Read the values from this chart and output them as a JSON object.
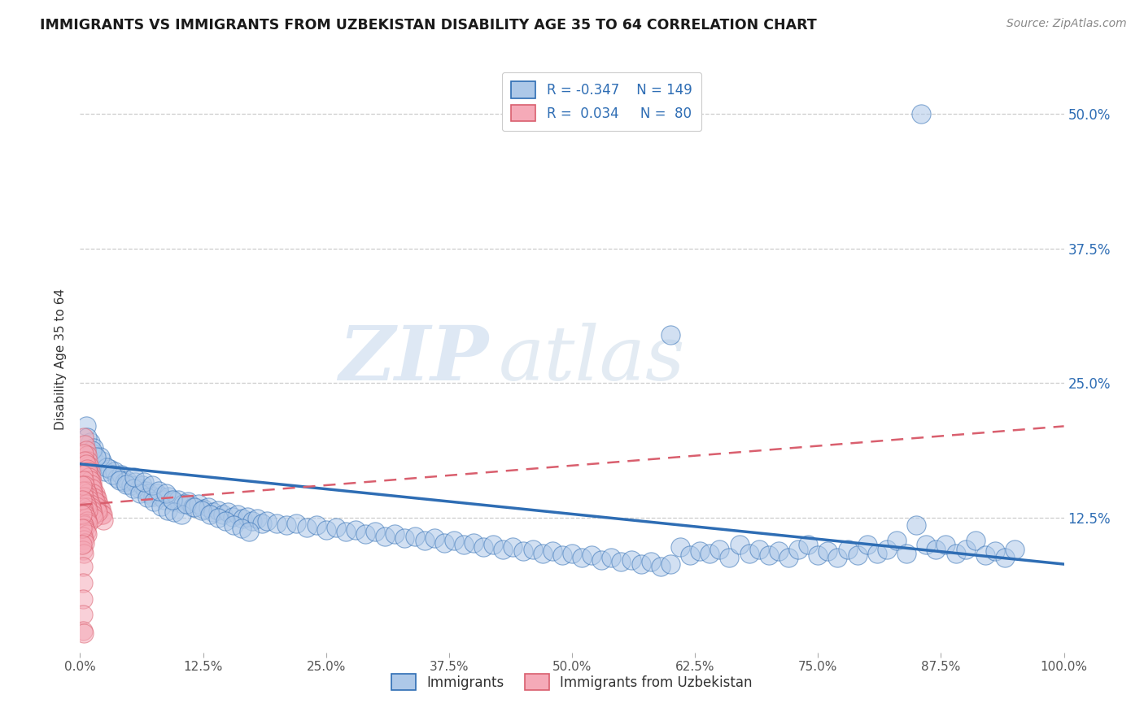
{
  "title": "IMMIGRANTS VS IMMIGRANTS FROM UZBEKISTAN DISABILITY AGE 35 TO 64 CORRELATION CHART",
  "source": "Source: ZipAtlas.com",
  "ylabel": "Disability Age 35 to 64",
  "xlim": [
    0.0,
    1.0
  ],
  "ylim": [
    0.0,
    0.545
  ],
  "x_tick_labels": [
    "0.0%",
    "12.5%",
    "25.0%",
    "37.5%",
    "50.0%",
    "62.5%",
    "75.0%",
    "87.5%",
    "100.0%"
  ],
  "x_tick_values": [
    0.0,
    0.125,
    0.25,
    0.375,
    0.5,
    0.625,
    0.75,
    0.875,
    1.0
  ],
  "y_tick_labels": [
    "12.5%",
    "25.0%",
    "37.5%",
    "50.0%"
  ],
  "y_tick_values": [
    0.125,
    0.25,
    0.375,
    0.5
  ],
  "legend_blue_r": "-0.347",
  "legend_blue_n": "149",
  "legend_pink_r": "0.034",
  "legend_pink_n": "80",
  "blue_color": "#adc8e8",
  "pink_color": "#f5aab8",
  "blue_line_color": "#2e6db4",
  "pink_line_color": "#d95f6e",
  "watermark_zip": "ZIP",
  "watermark_atlas": "atlas",
  "title_fontsize": 12.5,
  "blue_scatter": [
    [
      0.006,
      0.21
    ],
    [
      0.01,
      0.195
    ],
    [
      0.013,
      0.185
    ],
    [
      0.018,
      0.175
    ],
    [
      0.022,
      0.178
    ],
    [
      0.025,
      0.168
    ],
    [
      0.03,
      0.17
    ],
    [
      0.035,
      0.168
    ],
    [
      0.038,
      0.162
    ],
    [
      0.042,
      0.165
    ],
    [
      0.045,
      0.158
    ],
    [
      0.048,
      0.16
    ],
    [
      0.052,
      0.155
    ],
    [
      0.056,
      0.158
    ],
    [
      0.06,
      0.152
    ],
    [
      0.063,
      0.155
    ],
    [
      0.067,
      0.15
    ],
    [
      0.07,
      0.148
    ],
    [
      0.074,
      0.145
    ],
    [
      0.078,
      0.148
    ],
    [
      0.082,
      0.145
    ],
    [
      0.086,
      0.142
    ],
    [
      0.09,
      0.145
    ],
    [
      0.095,
      0.14
    ],
    [
      0.1,
      0.142
    ],
    [
      0.105,
      0.138
    ],
    [
      0.11,
      0.14
    ],
    [
      0.115,
      0.135
    ],
    [
      0.12,
      0.138
    ],
    [
      0.125,
      0.133
    ],
    [
      0.13,
      0.135
    ],
    [
      0.135,
      0.13
    ],
    [
      0.14,
      0.132
    ],
    [
      0.145,
      0.128
    ],
    [
      0.15,
      0.13
    ],
    [
      0.155,
      0.126
    ],
    [
      0.16,
      0.128
    ],
    [
      0.165,
      0.124
    ],
    [
      0.17,
      0.126
    ],
    [
      0.175,
      0.122
    ],
    [
      0.18,
      0.124
    ],
    [
      0.185,
      0.12
    ],
    [
      0.19,
      0.122
    ],
    [
      0.2,
      0.12
    ],
    [
      0.21,
      0.118
    ],
    [
      0.22,
      0.12
    ],
    [
      0.23,
      0.116
    ],
    [
      0.24,
      0.118
    ],
    [
      0.25,
      0.114
    ],
    [
      0.26,
      0.116
    ],
    [
      0.27,
      0.112
    ],
    [
      0.28,
      0.114
    ],
    [
      0.29,
      0.11
    ],
    [
      0.3,
      0.112
    ],
    [
      0.31,
      0.108
    ],
    [
      0.32,
      0.11
    ],
    [
      0.33,
      0.106
    ],
    [
      0.34,
      0.108
    ],
    [
      0.35,
      0.104
    ],
    [
      0.36,
      0.106
    ],
    [
      0.37,
      0.102
    ],
    [
      0.38,
      0.104
    ],
    [
      0.39,
      0.1
    ],
    [
      0.4,
      0.102
    ],
    [
      0.41,
      0.098
    ],
    [
      0.42,
      0.1
    ],
    [
      0.43,
      0.096
    ],
    [
      0.44,
      0.098
    ],
    [
      0.45,
      0.094
    ],
    [
      0.46,
      0.096
    ],
    [
      0.47,
      0.092
    ],
    [
      0.48,
      0.094
    ],
    [
      0.49,
      0.09
    ],
    [
      0.5,
      0.092
    ],
    [
      0.51,
      0.088
    ],
    [
      0.52,
      0.09
    ],
    [
      0.53,
      0.086
    ],
    [
      0.54,
      0.088
    ],
    [
      0.55,
      0.084
    ],
    [
      0.56,
      0.086
    ],
    [
      0.57,
      0.082
    ],
    [
      0.58,
      0.084
    ],
    [
      0.59,
      0.08
    ],
    [
      0.6,
      0.082
    ],
    [
      0.61,
      0.098
    ],
    [
      0.62,
      0.09
    ],
    [
      0.63,
      0.094
    ],
    [
      0.64,
      0.092
    ],
    [
      0.65,
      0.096
    ],
    [
      0.66,
      0.088
    ],
    [
      0.67,
      0.1
    ],
    [
      0.68,
      0.092
    ],
    [
      0.69,
      0.096
    ],
    [
      0.7,
      0.09
    ],
    [
      0.71,
      0.094
    ],
    [
      0.72,
      0.088
    ],
    [
      0.73,
      0.096
    ],
    [
      0.74,
      0.1
    ],
    [
      0.75,
      0.09
    ],
    [
      0.76,
      0.094
    ],
    [
      0.77,
      0.088
    ],
    [
      0.78,
      0.096
    ],
    [
      0.79,
      0.09
    ],
    [
      0.8,
      0.1
    ],
    [
      0.81,
      0.092
    ],
    [
      0.82,
      0.096
    ],
    [
      0.83,
      0.104
    ],
    [
      0.84,
      0.092
    ],
    [
      0.85,
      0.118
    ],
    [
      0.86,
      0.1
    ],
    [
      0.87,
      0.096
    ],
    [
      0.88,
      0.1
    ],
    [
      0.89,
      0.092
    ],
    [
      0.9,
      0.096
    ],
    [
      0.91,
      0.104
    ],
    [
      0.92,
      0.09
    ],
    [
      0.93,
      0.094
    ],
    [
      0.94,
      0.088
    ],
    [
      0.95,
      0.096
    ],
    [
      0.855,
      0.5
    ],
    [
      0.6,
      0.295
    ],
    [
      0.007,
      0.2
    ],
    [
      0.014,
      0.19
    ],
    [
      0.02,
      0.182
    ],
    [
      0.027,
      0.172
    ],
    [
      0.033,
      0.165
    ],
    [
      0.04,
      0.16
    ],
    [
      0.047,
      0.156
    ],
    [
      0.054,
      0.152
    ],
    [
      0.061,
      0.148
    ],
    [
      0.068,
      0.144
    ],
    [
      0.075,
      0.14
    ],
    [
      0.082,
      0.136
    ],
    [
      0.089,
      0.132
    ],
    [
      0.096,
      0.13
    ],
    [
      0.103,
      0.128
    ],
    [
      0.055,
      0.163
    ],
    [
      0.065,
      0.158
    ],
    [
      0.073,
      0.155
    ],
    [
      0.08,
      0.15
    ],
    [
      0.087,
      0.148
    ],
    [
      0.094,
      0.142
    ],
    [
      0.108,
      0.138
    ],
    [
      0.116,
      0.135
    ],
    [
      0.124,
      0.132
    ],
    [
      0.132,
      0.128
    ],
    [
      0.14,
      0.125
    ],
    [
      0.148,
      0.122
    ],
    [
      0.156,
      0.118
    ],
    [
      0.164,
      0.115
    ],
    [
      0.172,
      0.112
    ],
    [
      0.012,
      0.188
    ],
    [
      0.016,
      0.182
    ]
  ],
  "pink_scatter": [
    [
      0.004,
      0.2
    ],
    [
      0.005,
      0.193
    ],
    [
      0.006,
      0.188
    ],
    [
      0.007,
      0.183
    ],
    [
      0.008,
      0.178
    ],
    [
      0.009,
      0.173
    ],
    [
      0.01,
      0.168
    ],
    [
      0.011,
      0.163
    ],
    [
      0.012,
      0.158
    ],
    [
      0.013,
      0.153
    ],
    [
      0.014,
      0.148
    ],
    [
      0.015,
      0.148
    ],
    [
      0.016,
      0.143
    ],
    [
      0.017,
      0.143
    ],
    [
      0.018,
      0.138
    ],
    [
      0.019,
      0.138
    ],
    [
      0.02,
      0.133
    ],
    [
      0.021,
      0.133
    ],
    [
      0.022,
      0.128
    ],
    [
      0.023,
      0.128
    ],
    [
      0.024,
      0.123
    ],
    [
      0.004,
      0.185
    ],
    [
      0.005,
      0.178
    ],
    [
      0.006,
      0.175
    ],
    [
      0.007,
      0.17
    ],
    [
      0.008,
      0.168
    ],
    [
      0.009,
      0.163
    ],
    [
      0.01,
      0.16
    ],
    [
      0.011,
      0.156
    ],
    [
      0.012,
      0.152
    ],
    [
      0.013,
      0.148
    ],
    [
      0.014,
      0.144
    ],
    [
      0.015,
      0.14
    ],
    [
      0.016,
      0.136
    ],
    [
      0.017,
      0.132
    ],
    [
      0.018,
      0.13
    ],
    [
      0.003,
      0.165
    ],
    [
      0.004,
      0.16
    ],
    [
      0.005,
      0.155
    ],
    [
      0.006,
      0.15
    ],
    [
      0.007,
      0.148
    ],
    [
      0.008,
      0.145
    ],
    [
      0.009,
      0.142
    ],
    [
      0.01,
      0.138
    ],
    [
      0.011,
      0.135
    ],
    [
      0.012,
      0.132
    ],
    [
      0.013,
      0.128
    ],
    [
      0.014,
      0.125
    ],
    [
      0.003,
      0.15
    ],
    [
      0.004,
      0.145
    ],
    [
      0.005,
      0.14
    ],
    [
      0.006,
      0.138
    ],
    [
      0.007,
      0.135
    ],
    [
      0.008,
      0.132
    ],
    [
      0.003,
      0.135
    ],
    [
      0.004,
      0.13
    ],
    [
      0.005,
      0.128
    ],
    [
      0.006,
      0.125
    ],
    [
      0.007,
      0.122
    ],
    [
      0.008,
      0.12
    ],
    [
      0.003,
      0.12
    ],
    [
      0.004,
      0.118
    ],
    [
      0.005,
      0.115
    ],
    [
      0.006,
      0.112
    ],
    [
      0.007,
      0.11
    ],
    [
      0.003,
      0.108
    ],
    [
      0.004,
      0.105
    ],
    [
      0.005,
      0.102
    ],
    [
      0.003,
      0.095
    ],
    [
      0.004,
      0.092
    ],
    [
      0.003,
      0.08
    ],
    [
      0.003,
      0.065
    ],
    [
      0.003,
      0.05
    ],
    [
      0.003,
      0.035
    ],
    [
      0.003,
      0.02
    ],
    [
      0.004,
      0.018
    ],
    [
      0.002,
      0.155
    ],
    [
      0.002,
      0.142
    ],
    [
      0.002,
      0.128
    ],
    [
      0.002,
      0.115
    ],
    [
      0.002,
      0.1
    ]
  ]
}
